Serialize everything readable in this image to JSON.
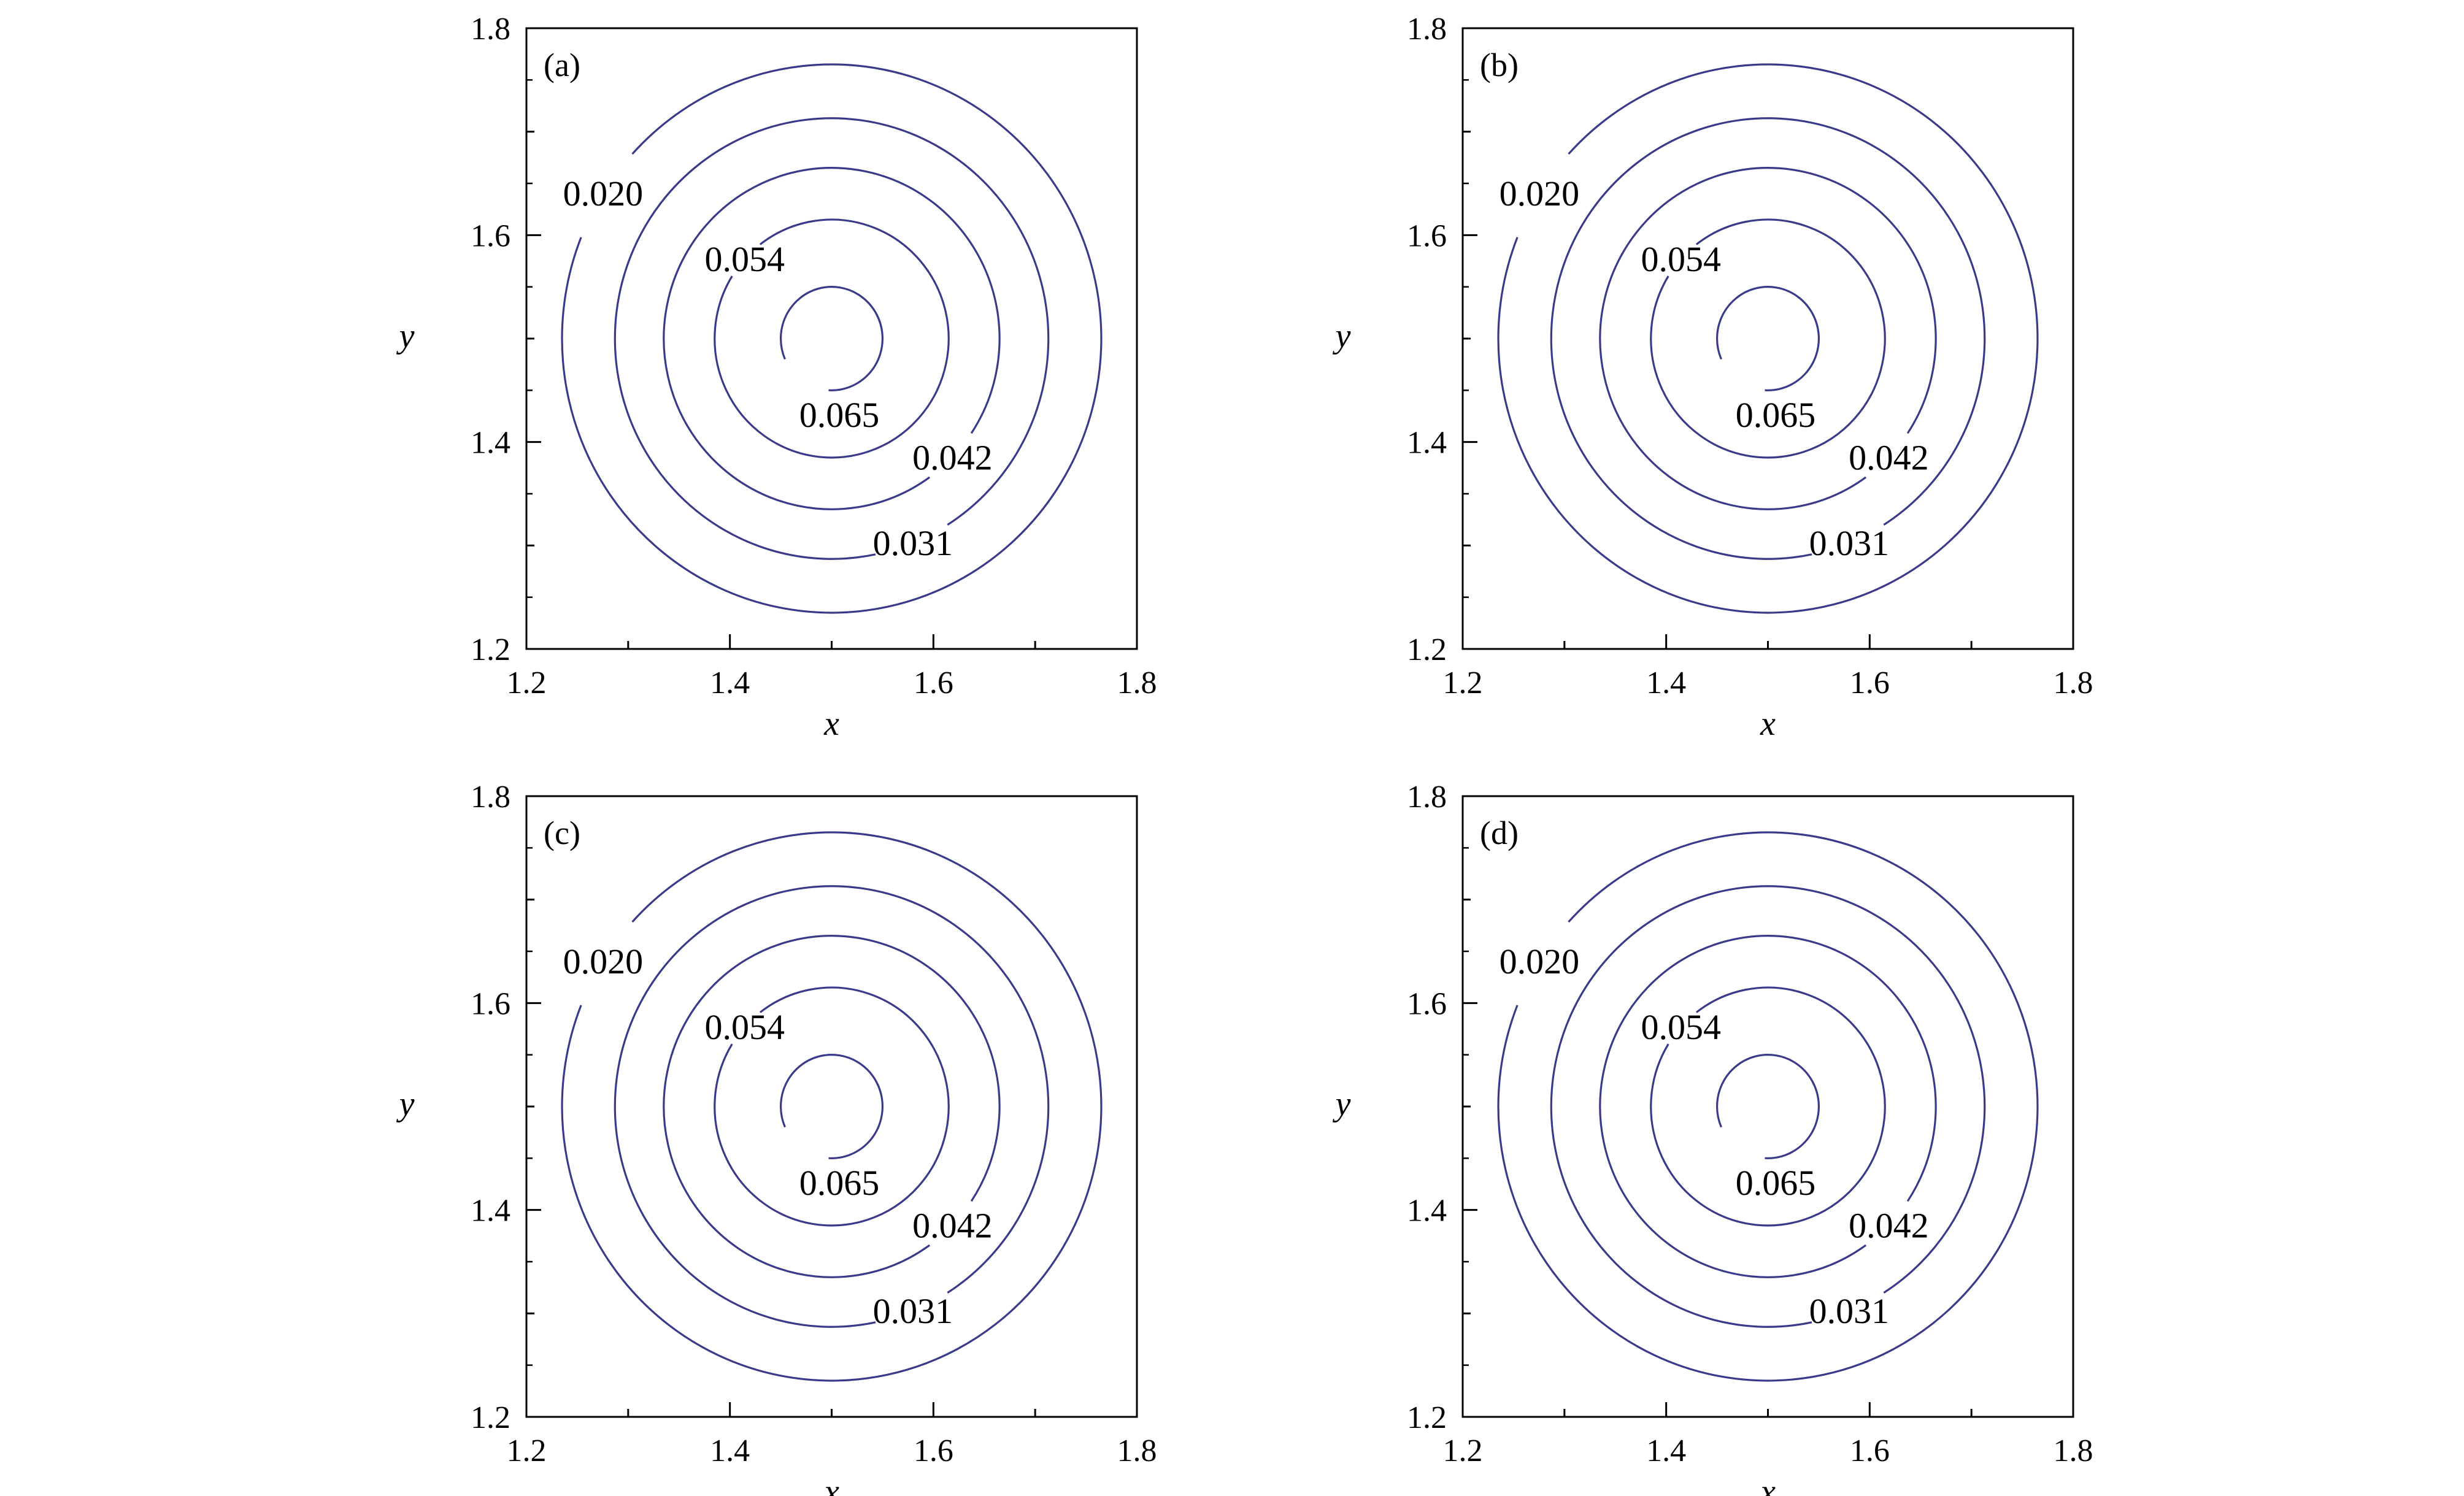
{
  "chart_data": [
    {
      "type": "contour",
      "panel": "(a)",
      "xlabel": "x",
      "ylabel": "y",
      "xlim": [
        1.2,
        1.8
      ],
      "ylim": [
        1.2,
        1.8
      ],
      "xticks": [
        "1.2",
        "1.4",
        "1.6",
        "1.8"
      ],
      "yticks": [
        "1.2",
        "1.4",
        "1.6",
        "1.8"
      ],
      "center": [
        1.5,
        1.5
      ],
      "levels": [
        {
          "value": 0.02,
          "label": "0.020",
          "radius": 0.265
        },
        {
          "value": 0.031,
          "label": "0.031",
          "radius": 0.213
        },
        {
          "value": 0.042,
          "label": "0.042",
          "radius": 0.165
        },
        {
          "value": 0.054,
          "label": "0.054",
          "radius": 0.115
        },
        {
          "value": 0.065,
          "label": "0.065",
          "radius": 0.05
        }
      ]
    },
    {
      "type": "contour",
      "panel": "(b)",
      "xlabel": "x",
      "ylabel": "y",
      "xlim": [
        1.2,
        1.8
      ],
      "ylim": [
        1.2,
        1.8
      ],
      "xticks": [
        "1.2",
        "1.4",
        "1.6",
        "1.8"
      ],
      "yticks": [
        "1.2",
        "1.4",
        "1.6",
        "1.8"
      ],
      "center": [
        1.5,
        1.5
      ],
      "levels": [
        {
          "value": 0.02,
          "label": "0.020",
          "radius": 0.265
        },
        {
          "value": 0.031,
          "label": "0.031",
          "radius": 0.213
        },
        {
          "value": 0.042,
          "label": "0.042",
          "radius": 0.165
        },
        {
          "value": 0.054,
          "label": "0.054",
          "radius": 0.115
        },
        {
          "value": 0.065,
          "label": "0.065",
          "radius": 0.05
        }
      ]
    },
    {
      "type": "contour",
      "panel": "(c)",
      "xlabel": "x",
      "ylabel": "y",
      "xlim": [
        1.2,
        1.8
      ],
      "ylim": [
        1.2,
        1.8
      ],
      "xticks": [
        "1.2",
        "1.4",
        "1.6",
        "1.8"
      ],
      "yticks": [
        "1.2",
        "1.4",
        "1.6",
        "1.8"
      ],
      "center": [
        1.5,
        1.5
      ],
      "levels": [
        {
          "value": 0.02,
          "label": "0.020",
          "radius": 0.265
        },
        {
          "value": 0.031,
          "label": "0.031",
          "radius": 0.213
        },
        {
          "value": 0.042,
          "label": "0.042",
          "radius": 0.165
        },
        {
          "value": 0.054,
          "label": "0.054",
          "radius": 0.115
        },
        {
          "value": 0.065,
          "label": "0.065",
          "radius": 0.05
        }
      ]
    },
    {
      "type": "contour",
      "panel": "(d)",
      "xlabel": "x",
      "ylabel": "y",
      "xlim": [
        1.2,
        1.8
      ],
      "ylim": [
        1.2,
        1.8
      ],
      "xticks": [
        "1.2",
        "1.4",
        "1.6",
        "1.8"
      ],
      "yticks": [
        "1.2",
        "1.4",
        "1.6",
        "1.8"
      ],
      "center": [
        1.5,
        1.5
      ],
      "levels": [
        {
          "value": 0.02,
          "label": "0.020",
          "radius": 0.265
        },
        {
          "value": 0.031,
          "label": "0.031",
          "radius": 0.213
        },
        {
          "value": 0.042,
          "label": "0.042",
          "radius": 0.165
        },
        {
          "value": 0.054,
          "label": "0.054",
          "radius": 0.115
        },
        {
          "value": 0.065,
          "label": "0.065",
          "radius": 0.05
        }
      ]
    }
  ],
  "colors": {
    "contour": "#3a3a8a",
    "axis": "#000000"
  }
}
